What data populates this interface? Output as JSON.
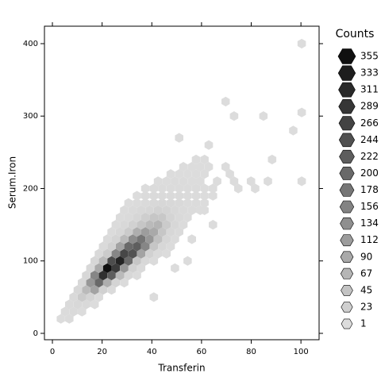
{
  "chart_data": {
    "type": "hexbin",
    "x_label": "Transferin",
    "y_label": "Serum.Iron",
    "xlim": [
      -3.2,
      107.3
    ],
    "ylim": [
      -8.8,
      424.1
    ],
    "xticks": [
      0,
      20,
      40,
      60,
      80,
      100
    ],
    "yticks": [
      0,
      100,
      200,
      300,
      400
    ],
    "color_range": [
      "#dcdcdc",
      "#101010"
    ],
    "legend_title": "Counts",
    "legend_levels": [
      355,
      333,
      311,
      289,
      266,
      244,
      222,
      200,
      178,
      156,
      134,
      112,
      90,
      67,
      45,
      23,
      1
    ],
    "x": [
      3.4,
      6.8,
      5.1,
      8.5,
      11.9,
      6.8,
      10.2,
      13.6,
      17,
      8.5,
      11.9,
      15.3,
      18.7,
      10.2,
      13.6,
      17,
      20.4,
      23.8,
      11.9,
      15.3,
      18.7,
      22.1,
      25.5,
      28.9,
      13.6,
      17,
      20.4,
      23.8,
      27.2,
      30.6,
      34,
      15.3,
      18.7,
      22.1,
      25.5,
      28.9,
      32.3,
      35.7,
      17,
      20.4,
      23.8,
      27.2,
      30.6,
      34,
      37.4,
      40.8,
      18.7,
      22.1,
      25.5,
      28.9,
      32.3,
      35.7,
      39.1,
      42.5,
      45.9,
      20.4,
      23.8,
      27.2,
      30.6,
      34,
      37.4,
      40.8,
      44.2,
      47.6,
      22.1,
      25.5,
      28.9,
      32.3,
      35.7,
      39.1,
      42.5,
      45.9,
      49.3,
      23.8,
      27.2,
      30.6,
      34,
      37.4,
      40.8,
      44.2,
      47.6,
      51,
      25.5,
      28.9,
      32.3,
      35.7,
      39.1,
      42.5,
      45.9,
      49.3,
      52.7,
      27.2,
      30.6,
      34,
      37.4,
      40.8,
      44.2,
      47.6,
      51,
      54.4,
      28.9,
      32.3,
      35.7,
      39.1,
      42.5,
      45.9,
      49.3,
      52.7,
      56.1,
      59.5,
      30.6,
      34,
      37.4,
      40.8,
      44.2,
      47.6,
      51,
      54.4,
      57.8,
      61.2,
      34,
      37.4,
      40.8,
      44.2,
      47.6,
      51,
      54.4,
      57.8,
      61.2,
      64.6,
      37.4,
      40.8,
      44.2,
      47.6,
      51,
      54.4,
      57.8,
      61.2,
      64.6,
      74.8,
      81.6,
      42.5,
      45.9,
      49.3,
      52.7,
      56.1,
      59.5,
      66.3,
      73.1,
      79.9,
      86.7,
      100.3,
      47.6,
      51,
      54.4,
      57.8,
      61.2,
      71.4,
      52.7,
      56.1,
      59.5,
      62.9,
      69.7,
      57.8,
      61.2,
      88.4,
      62.9,
      40.8,
      49.3,
      54.4,
      56.1,
      73.1,
      84.9,
      100.3,
      100.3,
      69.7,
      51,
      96.9,
      64.6,
      61.2
    ],
    "y": [
      20,
      20,
      30,
      30,
      30,
      40,
      40,
      40,
      40,
      50,
      50,
      50,
      50,
      60,
      60,
      60,
      60,
      60,
      70,
      70,
      70,
      70,
      70,
      70,
      80,
      80,
      80,
      80,
      80,
      80,
      80,
      90,
      90,
      90,
      90,
      90,
      90,
      90,
      100,
      100,
      100,
      100,
      100,
      100,
      100,
      100,
      110,
      110,
      110,
      110,
      110,
      110,
      110,
      110,
      110,
      120,
      120,
      120,
      120,
      120,
      120,
      120,
      120,
      120,
      130,
      130,
      130,
      130,
      130,
      130,
      130,
      130,
      130,
      140,
      140,
      140,
      140,
      140,
      140,
      140,
      140,
      140,
      150,
      150,
      150,
      150,
      150,
      150,
      150,
      150,
      150,
      160,
      160,
      160,
      160,
      160,
      160,
      160,
      160,
      160,
      170,
      170,
      170,
      170,
      170,
      170,
      170,
      170,
      170,
      170,
      180,
      180,
      180,
      180,
      180,
      180,
      180,
      180,
      180,
      180,
      190,
      190,
      190,
      190,
      190,
      190,
      190,
      190,
      190,
      190,
      200,
      200,
      200,
      200,
      200,
      200,
      200,
      200,
      200,
      200,
      200,
      210,
      210,
      210,
      210,
      210,
      210,
      210,
      210,
      210,
      210,
      210,
      220,
      220,
      220,
      220,
      220,
      220,
      230,
      230,
      230,
      230,
      230,
      240,
      240,
      240,
      260,
      50,
      90,
      100,
      130,
      300,
      300,
      305,
      400,
      320,
      270,
      280,
      150,
      170
    ],
    "counts": [
      1,
      2,
      3,
      5,
      1,
      4,
      8,
      6,
      1,
      6,
      30,
      15,
      3,
      10,
      60,
      100,
      20,
      4,
      8,
      120,
      200,
      80,
      15,
      3,
      10,
      150,
      300,
      220,
      60,
      10,
      2,
      8,
      90,
      355,
      280,
      120,
      20,
      4,
      10,
      60,
      250,
      320,
      200,
      40,
      8,
      2,
      6,
      30,
      150,
      260,
      240,
      100,
      20,
      5,
      1,
      5,
      20,
      100,
      200,
      220,
      150,
      40,
      10,
      3,
      4,
      15,
      60,
      140,
      180,
      120,
      50,
      12,
      3,
      3,
      10,
      30,
      80,
      110,
      90,
      40,
      10,
      4,
      3,
      8,
      20,
      40,
      60,
      70,
      30,
      10,
      3,
      2,
      5,
      12,
      25,
      40,
      35,
      15,
      6,
      2,
      2,
      4,
      8,
      12,
      18,
      15,
      8,
      4,
      2,
      1,
      1,
      3,
      5,
      8,
      10,
      8,
      6,
      3,
      2,
      1,
      1,
      2,
      4,
      5,
      5,
      4,
      3,
      2,
      1,
      1,
      1,
      2,
      3,
      3,
      3,
      2,
      2,
      1,
      1,
      1,
      1,
      1,
      1,
      2,
      2,
      1,
      1,
      1,
      1,
      1,
      1,
      1,
      1,
      1,
      1,
      1,
      1,
      1,
      1,
      1,
      1,
      1,
      1,
      1,
      1,
      1,
      1,
      1,
      1,
      1,
      1,
      1,
      1,
      1,
      1,
      1,
      1,
      1,
      1,
      1
    ]
  }
}
